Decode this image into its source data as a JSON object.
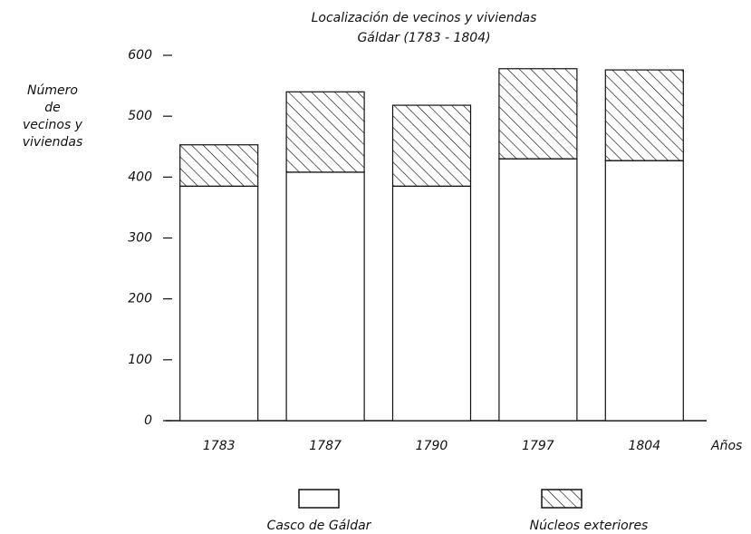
{
  "chart_data": {
    "type": "stacked_bar",
    "title": "Localización de vecinos y viviendas",
    "subtitle": "Gáldar (1783 - 1804)",
    "ylabel": [
      "Número",
      "de",
      "vecinos y",
      "viviendas"
    ],
    "xlabel": "Años",
    "categories": [
      "1783",
      "1787",
      "1790",
      "1797",
      "1804"
    ],
    "series": [
      {
        "name": "Casco de Gáldar",
        "color": "#ffffff",
        "hatch": false,
        "values": [
          385,
          408,
          385,
          430,
          427
        ]
      },
      {
        "name": "Núcleos exteriores",
        "color": "#ffffff",
        "hatch": true,
        "values": [
          68,
          132,
          133,
          148,
          149
        ]
      }
    ],
    "ylim": [
      0,
      600
    ],
    "yticks": [
      0,
      100,
      200,
      300,
      400,
      500,
      600
    ],
    "grid": false,
    "legend": "bottom"
  }
}
